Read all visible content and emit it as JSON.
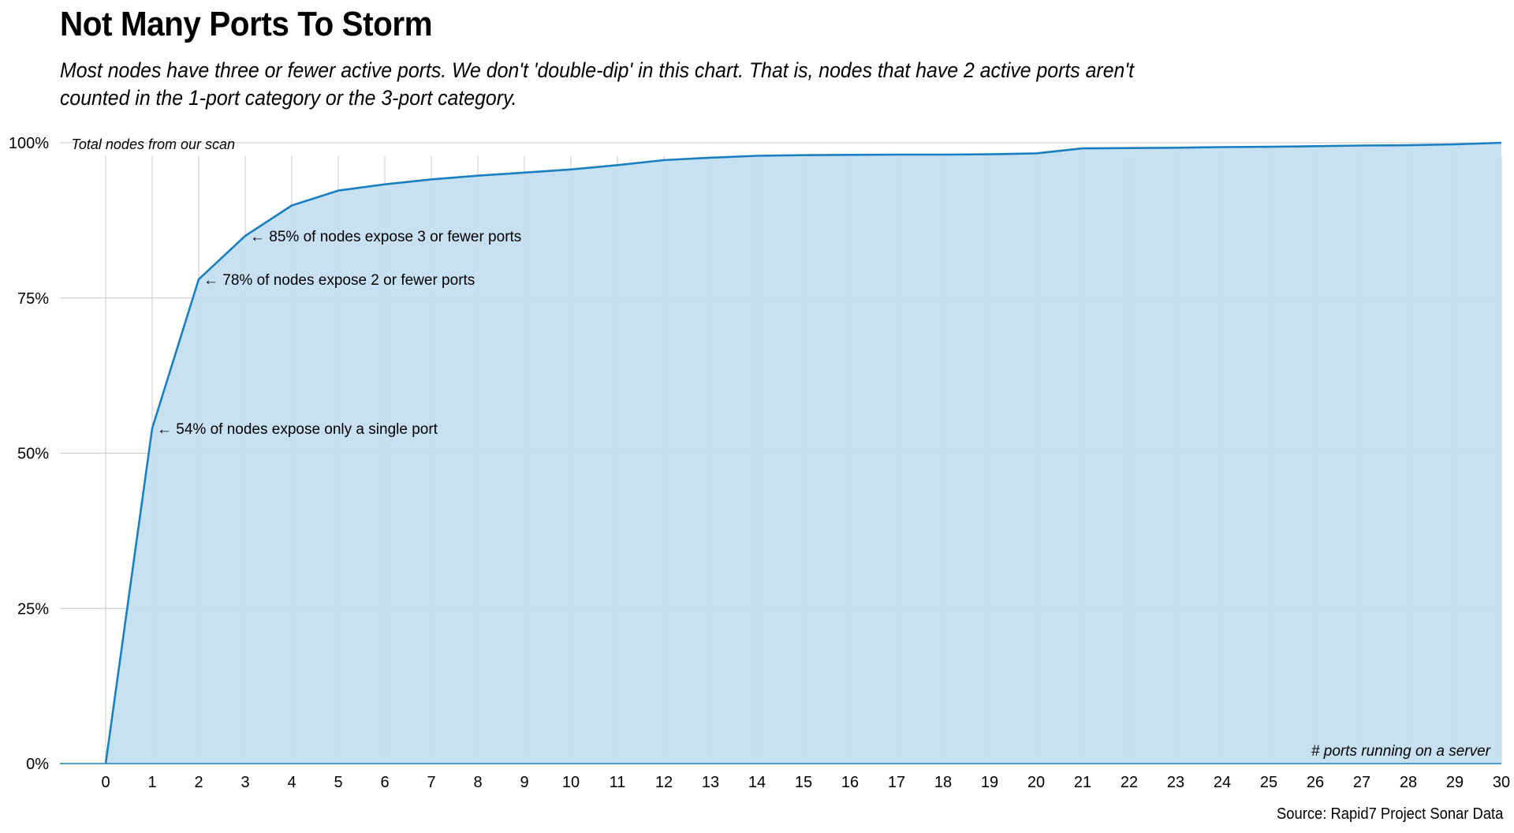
{
  "title": "Not Many Ports To Storm",
  "subtitle": "Most nodes have three or fewer active ports. We don't 'double-dip' in this chart. That is, nodes that have 2 active ports aren't counted in the 1-port category or the 3-port category.",
  "source": "Source: Rapid7 Project Sonar Data",
  "chart_data": {
    "type": "area",
    "x": [
      0,
      1,
      2,
      3,
      4,
      5,
      6,
      7,
      8,
      9,
      10,
      11,
      12,
      13,
      14,
      15,
      16,
      17,
      18,
      19,
      20,
      21,
      22,
      23,
      24,
      25,
      26,
      27,
      28,
      29,
      30
    ],
    "values": [
      0,
      54,
      78,
      85,
      89.9,
      92.3,
      93.3,
      94.1,
      94.7,
      95.2,
      95.7,
      96.4,
      97.2,
      97.6,
      97.9,
      98.0,
      98.05,
      98.1,
      98.1,
      98.15,
      98.3,
      99.1,
      99.15,
      99.2,
      99.3,
      99.35,
      99.45,
      99.55,
      99.6,
      99.75,
      100
    ],
    "xlim": [
      0,
      30
    ],
    "ylim": [
      0,
      100
    ],
    "y_ticks": [
      0,
      25,
      50,
      75,
      100
    ],
    "y_tick_labels": [
      "0%",
      "25%",
      "50%",
      "75%",
      "100%"
    ],
    "x_tick_labels": [
      "0",
      "1",
      "2",
      "3",
      "4",
      "5",
      "6",
      "7",
      "8",
      "9",
      "10",
      "11",
      "12",
      "13",
      "14",
      "15",
      "16",
      "17",
      "18",
      "19",
      "20",
      "21",
      "22",
      "23",
      "24",
      "25",
      "26",
      "27",
      "28",
      "29",
      "30"
    ],
    "xlabel": "# ports running on a server",
    "ylabel": "Total nodes from our scan",
    "grid": true,
    "line_color": "#1a7fc1",
    "fill_color": "#c4dff2",
    "annotations": [
      {
        "x": 1,
        "y": 54,
        "text": "← 54% of nodes expose only a single port"
      },
      {
        "x": 2,
        "y": 78,
        "text": "← 78% of nodes expose 2 or fewer ports"
      },
      {
        "x": 3,
        "y": 85,
        "text": "← 85% of nodes expose 3 or fewer ports"
      }
    ]
  }
}
